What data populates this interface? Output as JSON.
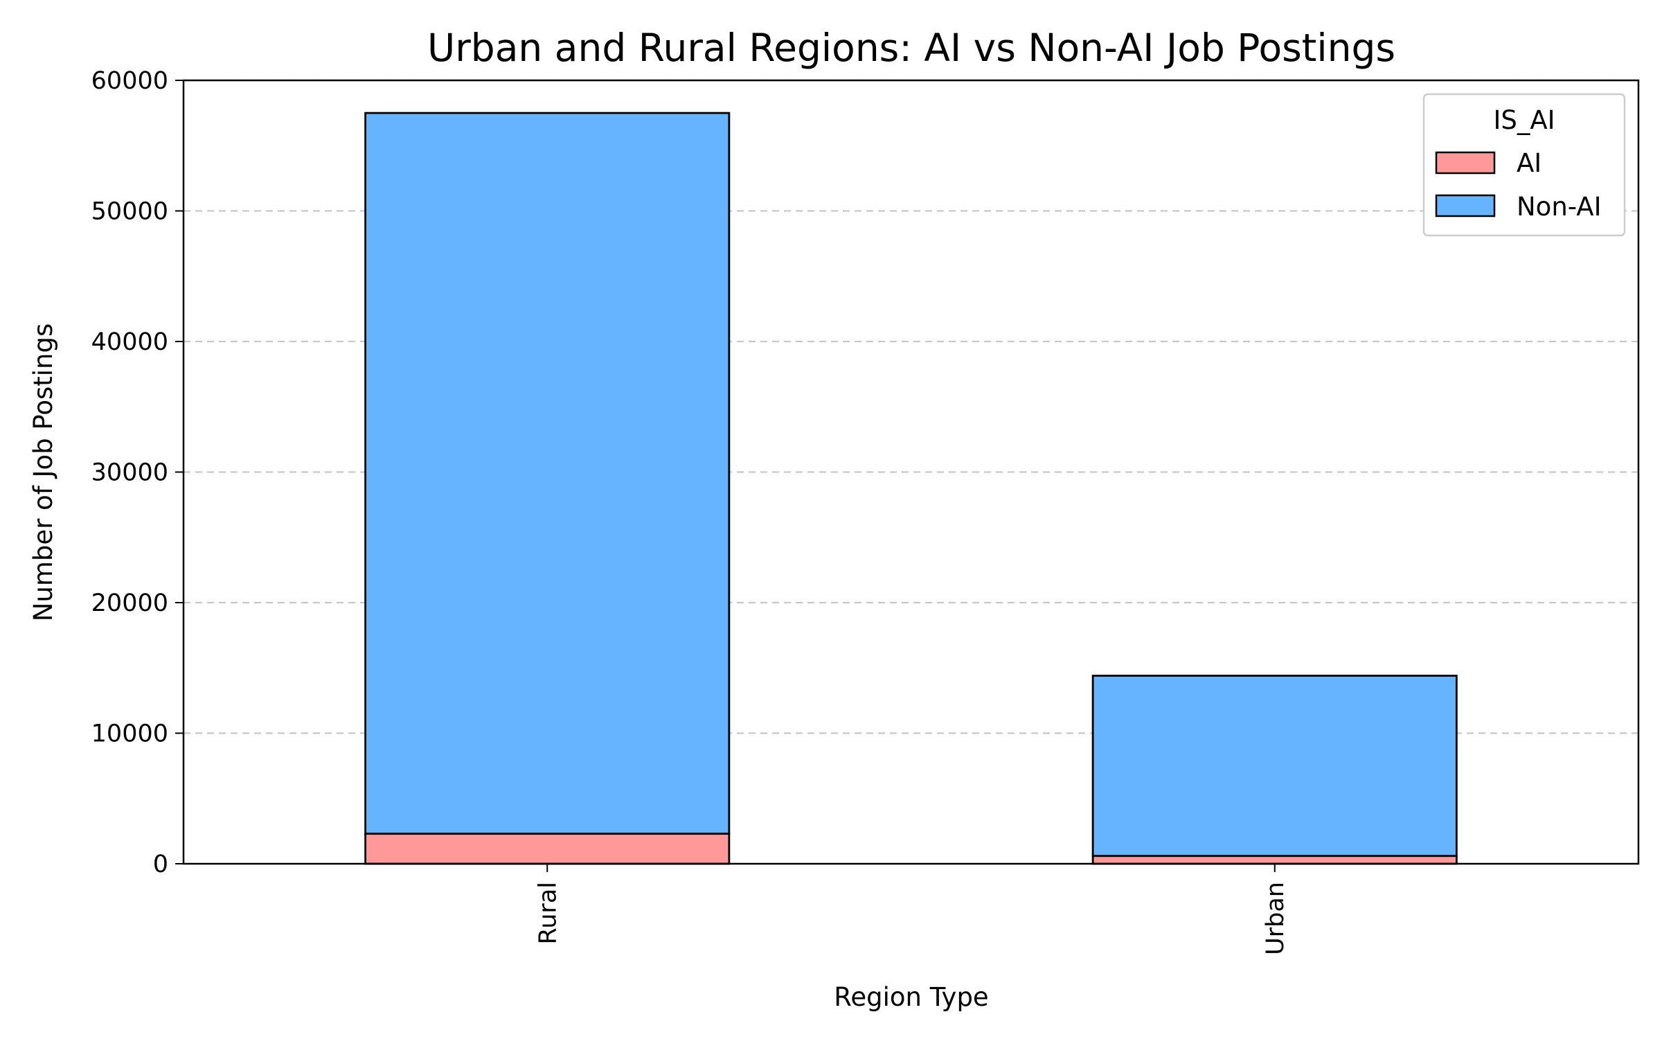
{
  "colors": {
    "ai": "#ff9999",
    "non_ai": "#66b3ff",
    "grid": "#c8c8c8",
    "edge": "#000000"
  },
  "chart_data": {
    "type": "bar",
    "stacked": true,
    "title": "Urban and Rural Regions: AI vs Non-AI Job Postings",
    "xlabel": "Region Type",
    "ylabel": "Number of Job Postings",
    "categories": [
      "Rural",
      "Urban"
    ],
    "series": [
      {
        "name": "AI",
        "values": [
          2300,
          600
        ]
      },
      {
        "name": "Non-AI",
        "values": [
          55200,
          13800
        ]
      }
    ],
    "ylim": [
      0,
      60000
    ],
    "yticks": [
      0,
      10000,
      20000,
      30000,
      40000,
      50000,
      60000
    ],
    "ytick_labels": [
      "0",
      "10000",
      "20000",
      "30000",
      "40000",
      "50000",
      "60000"
    ],
    "grid": "y-dashed",
    "legend": {
      "title": "IS_AI",
      "position": "top-right"
    }
  }
}
